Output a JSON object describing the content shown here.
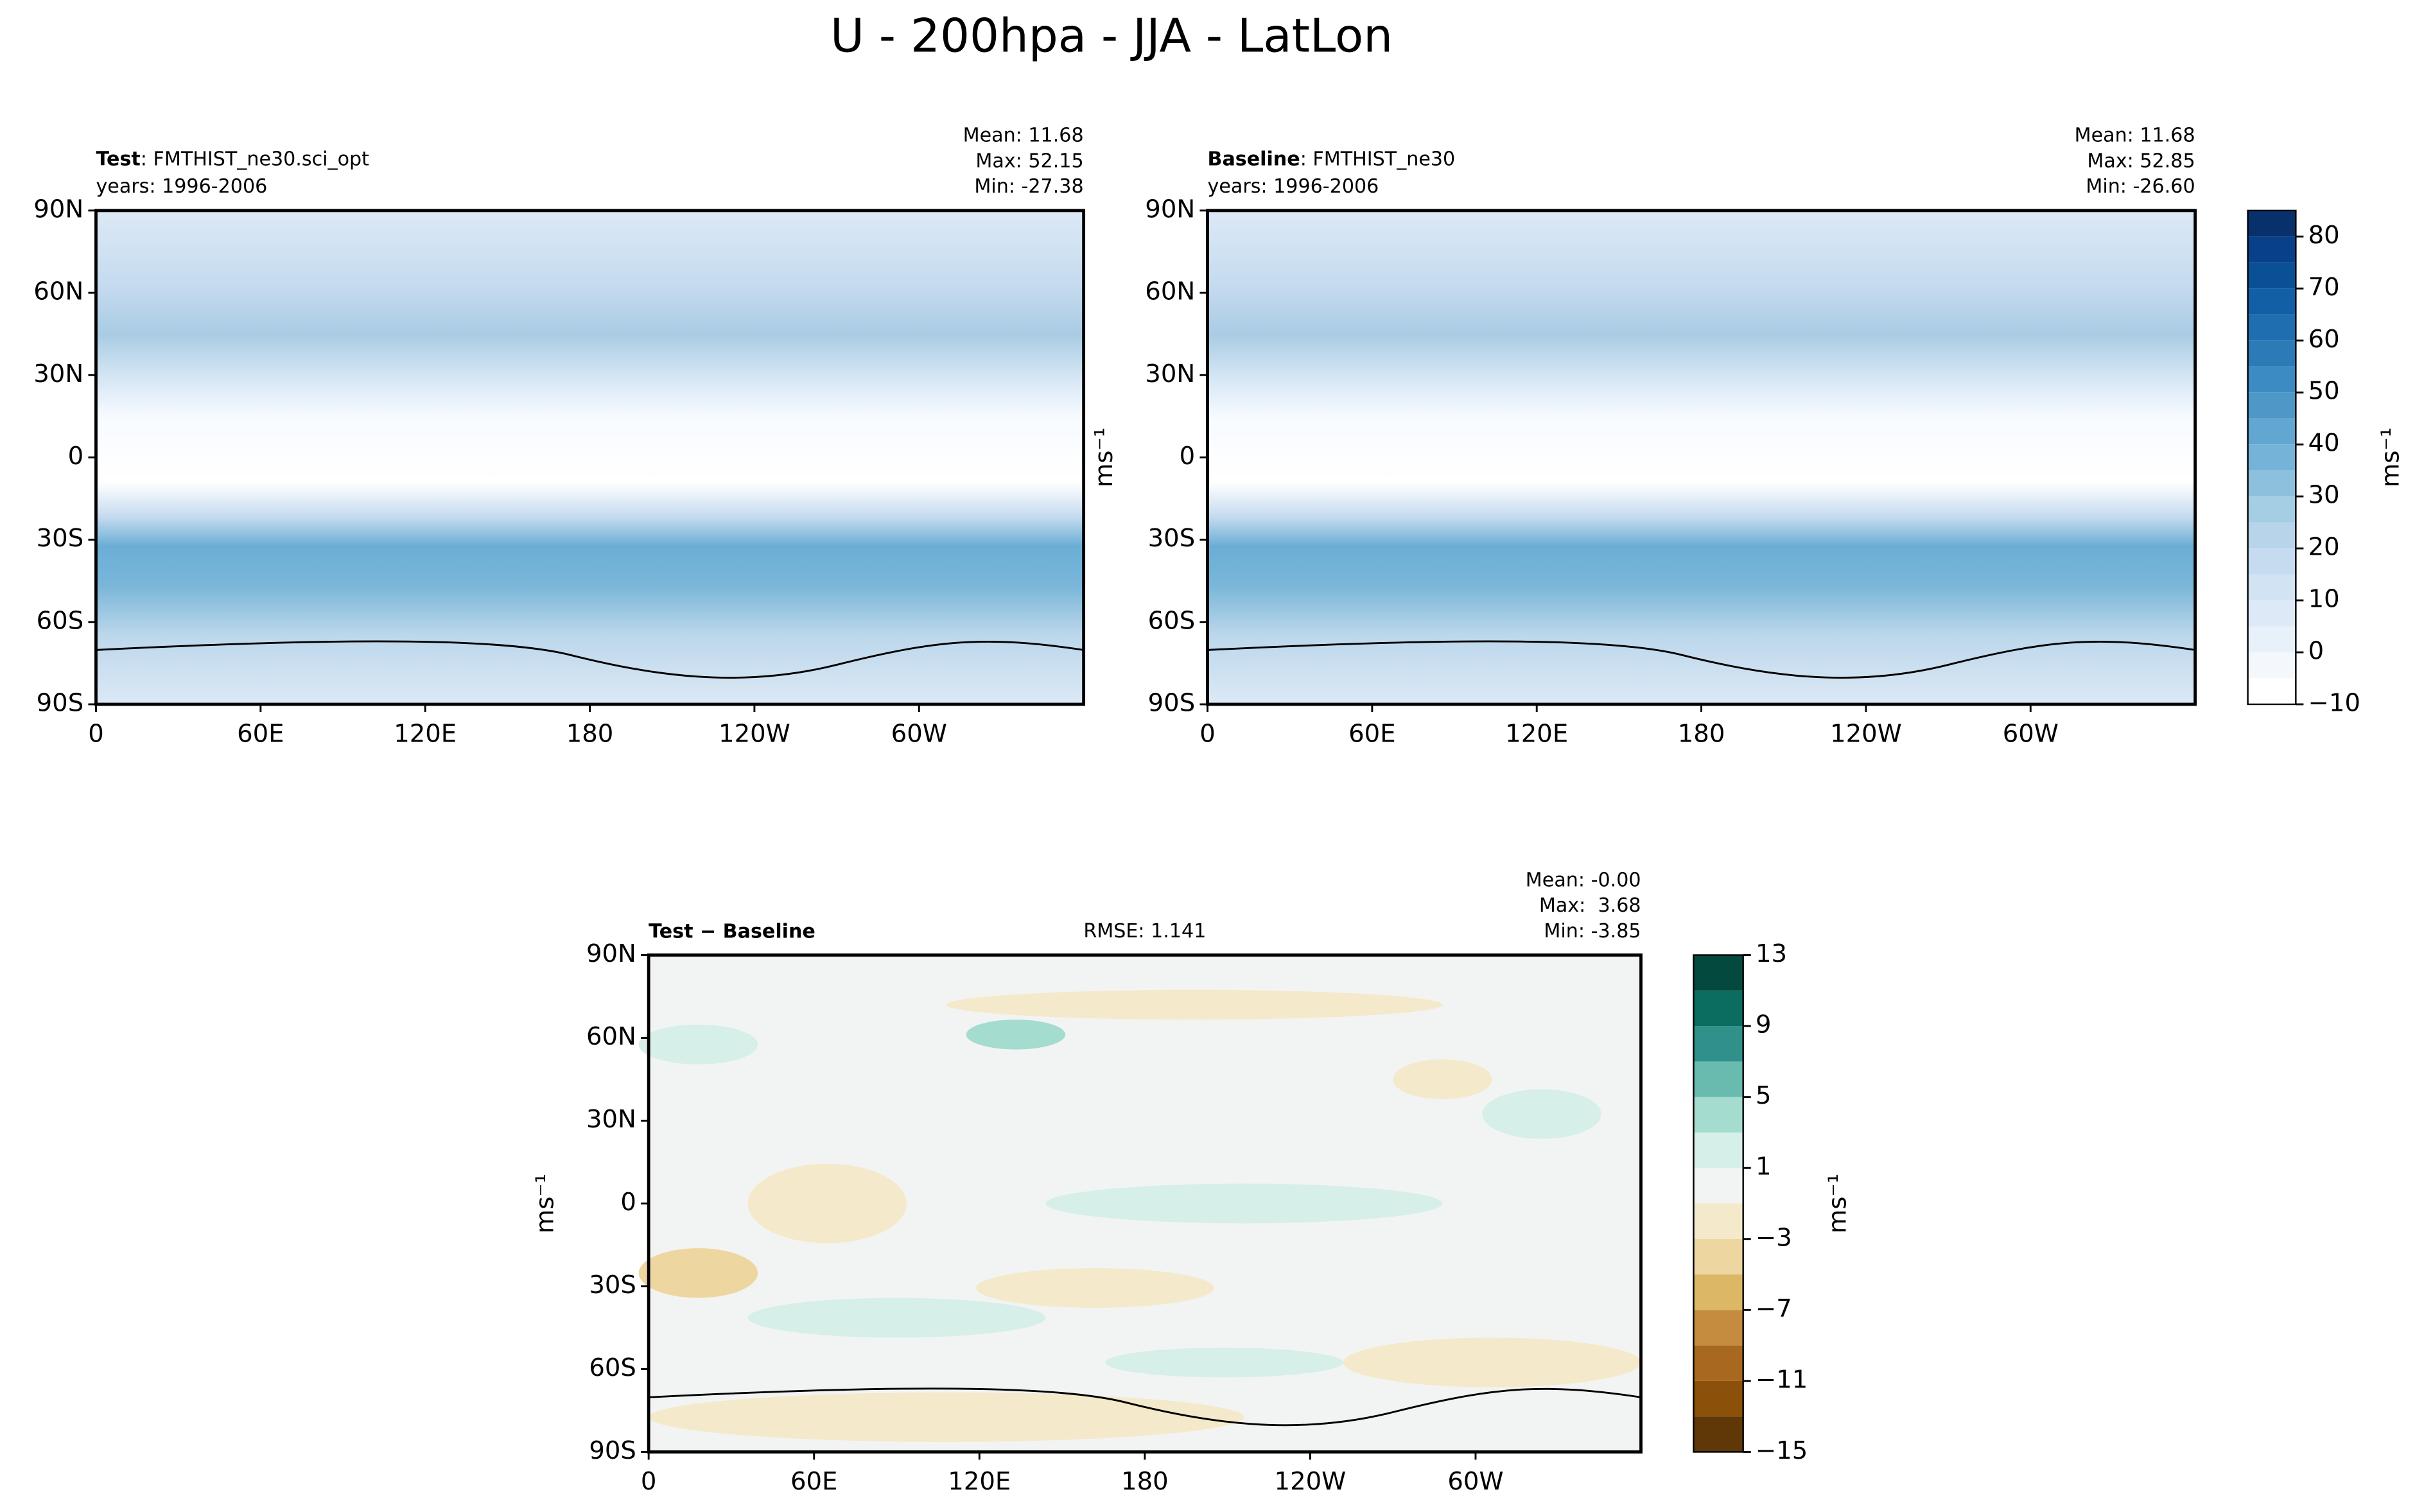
{
  "title": "U - 200hpa - JJA - LatLon",
  "chart_data": [
    {
      "type": "contour_map",
      "field": "full",
      "title_bold": "Test",
      "title_text": ": FMTHIST_ne30.sci_opt",
      "subtitle": "years: 1996-2006",
      "stats": [
        "Mean: 11.68",
        "Max: 52.15",
        "Min: -27.38"
      ],
      "xlim": [
        0,
        360
      ],
      "ylim": [
        -90,
        90
      ],
      "xticks": [
        0,
        {
          "value": 60,
          "label": "60E"
        },
        {
          "value": 120,
          "label": "120E"
        },
        180,
        {
          "value": 240,
          "label": "120W"
        },
        {
          "value": 300,
          "label": "60W"
        }
      ],
      "yticks": [
        {
          "value": 90,
          "label": "90N"
        },
        {
          "value": 60,
          "label": "60N"
        },
        {
          "value": 30,
          "label": "30N"
        },
        0,
        {
          "value": -30,
          "label": "30S"
        },
        {
          "value": -60,
          "label": "60S"
        },
        {
          "value": -90,
          "label": "90S"
        }
      ]
    },
    {
      "type": "contour_map",
      "field": "full",
      "title_bold": "Baseline",
      "title_text": ": FMTHIST_ne30",
      "subtitle": "years: 1996-2006",
      "stats": [
        "Mean: 11.68",
        "Max: 52.85",
        "Min: -26.60"
      ],
      "ylabel": "ms⁻¹",
      "xlim": [
        0,
        360
      ],
      "ylim": [
        -90,
        90
      ],
      "xticks": [
        0,
        {
          "value": 60,
          "label": "60E"
        },
        {
          "value": 120,
          "label": "120E"
        },
        180,
        {
          "value": 240,
          "label": "120W"
        },
        {
          "value": 300,
          "label": "60W"
        }
      ],
      "yticks": [
        {
          "value": 90,
          "label": "90N"
        },
        {
          "value": 60,
          "label": "60N"
        },
        {
          "value": 30,
          "label": "30N"
        },
        0,
        {
          "value": -30,
          "label": "30S"
        },
        {
          "value": -60,
          "label": "60S"
        },
        {
          "value": -90,
          "label": "90S"
        }
      ],
      "colorbar": {
        "label": "ms⁻¹",
        "levels": [
          -10,
          -5,
          0,
          5,
          10,
          15,
          20,
          25,
          30,
          35,
          40,
          45,
          50,
          55,
          60,
          65,
          70,
          75,
          80,
          85
        ],
        "colors": [
          "#ffffff",
          "#f4f8fd",
          "#e8f1fa",
          "#dde9f6",
          "#d2e3f3",
          "#c6dbef",
          "#b7d4ea",
          "#a5cde3",
          "#8dc0dd",
          "#76b3d8",
          "#61a7d2",
          "#4e98c8",
          "#3c8bc2",
          "#2c7bb6",
          "#1f6eb0",
          "#135fa7",
          "#0a5096",
          "#08418a",
          "#08306b"
        ],
        "ticks": [
          {
            "value": -10,
            "label": "−10"
          },
          0,
          10,
          20,
          30,
          40,
          50,
          60,
          70,
          80
        ]
      }
    },
    {
      "type": "contour_map",
      "field": "diff",
      "title_bold": "Test − Baseline",
      "center_text": "RMSE: 1.141",
      "stats": [
        "Mean: -0.00",
        "Max:  3.68",
        "Min: -3.85"
      ],
      "ylabel": "ms⁻¹",
      "xlim": [
        0,
        360
      ],
      "ylim": [
        -90,
        90
      ],
      "xticks": [
        0,
        {
          "value": 60,
          "label": "60E"
        },
        {
          "value": 120,
          "label": "120E"
        },
        180,
        {
          "value": 240,
          "label": "120W"
        },
        {
          "value": 300,
          "label": "60W"
        }
      ],
      "yticks": [
        {
          "value": 90,
          "label": "90N"
        },
        {
          "value": 60,
          "label": "60N"
        },
        {
          "value": 30,
          "label": "30N"
        },
        0,
        {
          "value": -30,
          "label": "30S"
        },
        {
          "value": -60,
          "label": "60S"
        },
        {
          "value": -90,
          "label": "90S"
        }
      ],
      "colorbar": {
        "label": "ms⁻¹",
        "levels": [
          -15,
          -13,
          -11,
          -9,
          -7,
          -5,
          -3,
          -1,
          1,
          3,
          5,
          7,
          9,
          11,
          13
        ],
        "colors": [
          "#603808",
          "#8b510a",
          "#a8681f",
          "#c58c3f",
          "#dcb766",
          "#eed6a0",
          "#f5e9cc",
          "#f2f4f3",
          "#d7efe9",
          "#a5dcd0",
          "#68bbae",
          "#2f9189",
          "#0b6d60",
          "#04493d"
        ],
        "ticks": [
          {
            "value": -15,
            "label": "−15"
          },
          {
            "value": -11,
            "label": "−11"
          },
          {
            "value": -7,
            "label": "−7"
          },
          {
            "value": -3,
            "label": "−3"
          },
          1,
          5,
          9,
          13
        ]
      }
    }
  ]
}
